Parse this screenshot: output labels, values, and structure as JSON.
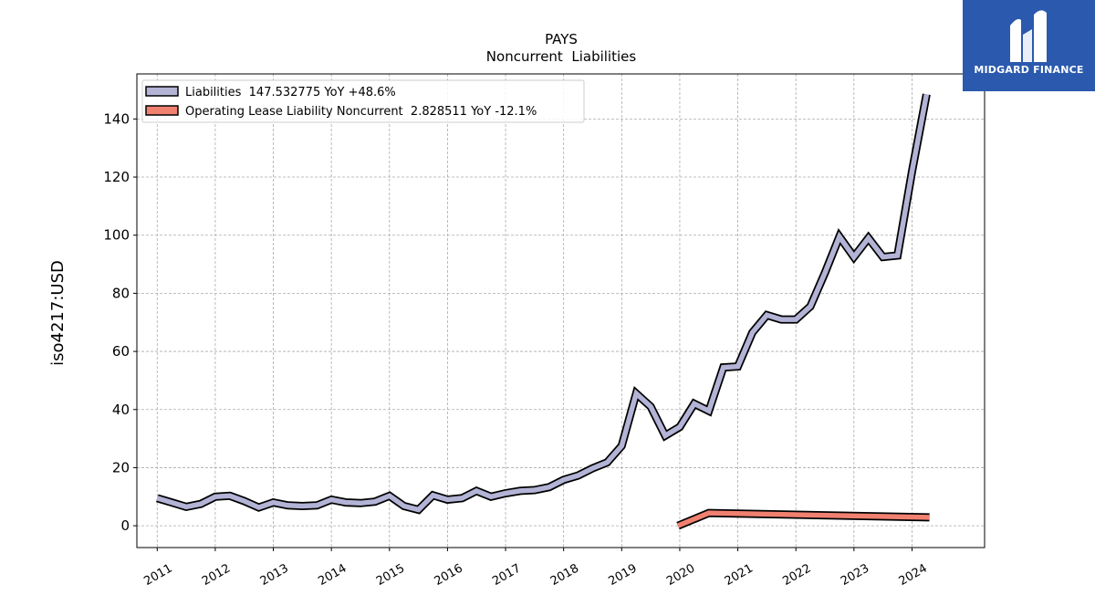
{
  "chart_data": {
    "type": "line",
    "title": "PAYS",
    "subtitle": "Noncurrent  Liabilities",
    "ylabel": "iso4217:USD",
    "xlabel": "",
    "xlim": [
      2010.65,
      2025.25
    ],
    "ylim": [
      -7.5,
      155.5
    ],
    "yticks": [
      0,
      20,
      40,
      60,
      80,
      100,
      120,
      140
    ],
    "xticks": [
      "2011",
      "2012",
      "2013",
      "2014",
      "2015",
      "2016",
      "2017",
      "2018",
      "2019",
      "2020",
      "2021",
      "2022",
      "2023",
      "2024"
    ],
    "grid": true,
    "legend_position": "top-left",
    "series": [
      {
        "name": "Liabilities",
        "legend_label": "Liabilities  147.532775 YoY +48.6%",
        "color": "#b3b3d6",
        "edge": "#000000",
        "x": [
          2011.0,
          2011.25,
          2011.5,
          2011.75,
          2012.0,
          2012.25,
          2012.5,
          2012.75,
          2013.0,
          2013.25,
          2013.5,
          2013.75,
          2014.0,
          2014.25,
          2014.5,
          2014.75,
          2015.0,
          2015.25,
          2015.5,
          2015.75,
          2016.0,
          2016.25,
          2016.5,
          2016.75,
          2017.0,
          2017.25,
          2017.5,
          2017.75,
          2018.0,
          2018.25,
          2018.5,
          2018.75,
          2019.0,
          2019.25,
          2019.5,
          2019.75,
          2020.0,
          2020.25,
          2020.5,
          2020.75,
          2021.0,
          2021.25,
          2021.5,
          2021.75,
          2022.0,
          2022.25,
          2022.5,
          2022.75,
          2023.0,
          2023.25,
          2023.5,
          2023.75,
          2024.0,
          2024.25
        ],
        "y": [
          9.5,
          8.0,
          6.5,
          7.5,
          10.0,
          10.3,
          8.5,
          6.3,
          8.0,
          7.0,
          6.8,
          7.0,
          9.0,
          8.0,
          7.8,
          8.3,
          10.3,
          6.8,
          5.5,
          10.5,
          9.0,
          9.5,
          12.0,
          10.0,
          11.2,
          12.0,
          12.3,
          13.3,
          15.8,
          17.3,
          19.8,
          21.8,
          27.5,
          45.5,
          41.0,
          31.0,
          34.0,
          42.0,
          39.5,
          54.5,
          54.8,
          66.5,
          72.5,
          71.0,
          71.0,
          75.5,
          87.0,
          99.5,
          92.5,
          99.0,
          92.5,
          93.0,
          122.0,
          148.5
        ]
      },
      {
        "name": "Operating Lease Liability Noncurrent",
        "legend_label": "Operating Lease Liability Noncurrent  2.828511 YoY -12.1%",
        "color": "#f08070",
        "edge": "#000000",
        "x": [
          2019.97,
          2020.5,
          2024.3
        ],
        "y": [
          0.0,
          4.4,
          2.9
        ]
      }
    ]
  },
  "logo": {
    "text": "MIDGARD FINANCE",
    "color": "#2a59ad"
  }
}
